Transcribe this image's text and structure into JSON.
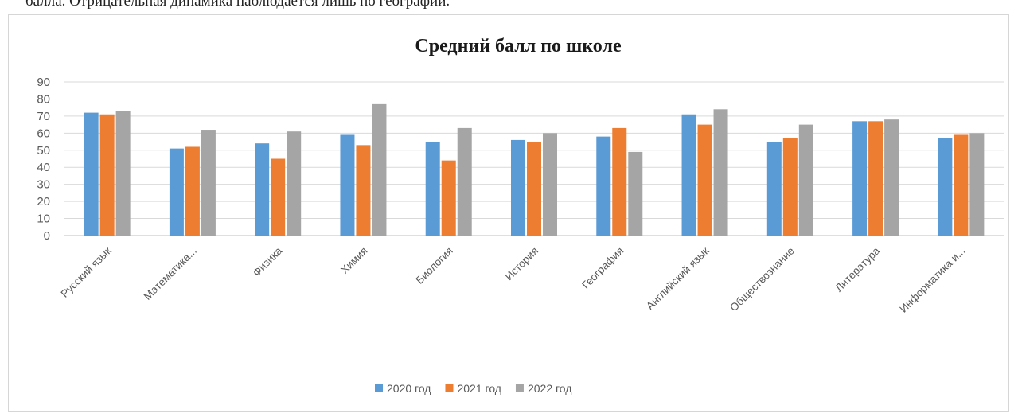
{
  "document": {
    "top_text": "балла. Отрицательная динамика наблюдается лишь по географии."
  },
  "chart_data": {
    "type": "bar",
    "title": "Средний балл по школе",
    "xlabel": "",
    "ylabel": "",
    "ylim": [
      0,
      90
    ],
    "yticks": [
      0,
      10,
      20,
      30,
      40,
      50,
      60,
      70,
      80,
      90
    ],
    "grid": true,
    "legend_position": "bottom",
    "categories": [
      "Русский язык",
      "Математика...",
      "Физика",
      "Химия",
      "Биология",
      "История",
      "География",
      "Английский язык",
      "Обществознание",
      "Литература",
      "Информатика и..."
    ],
    "series": [
      {
        "name": "2020 год",
        "color": "#5b9bd5",
        "values": [
          72,
          51,
          54,
          59,
          55,
          56,
          58,
          71,
          55,
          67,
          57
        ]
      },
      {
        "name": "2021 год",
        "color": "#ed7d31",
        "values": [
          71,
          52,
          45,
          53,
          44,
          55,
          63,
          65,
          57,
          67,
          59
        ]
      },
      {
        "name": "2022 год",
        "color": "#a5a5a5",
        "values": [
          73,
          62,
          61,
          77,
          63,
          60,
          49,
          74,
          65,
          68,
          60
        ]
      }
    ]
  }
}
